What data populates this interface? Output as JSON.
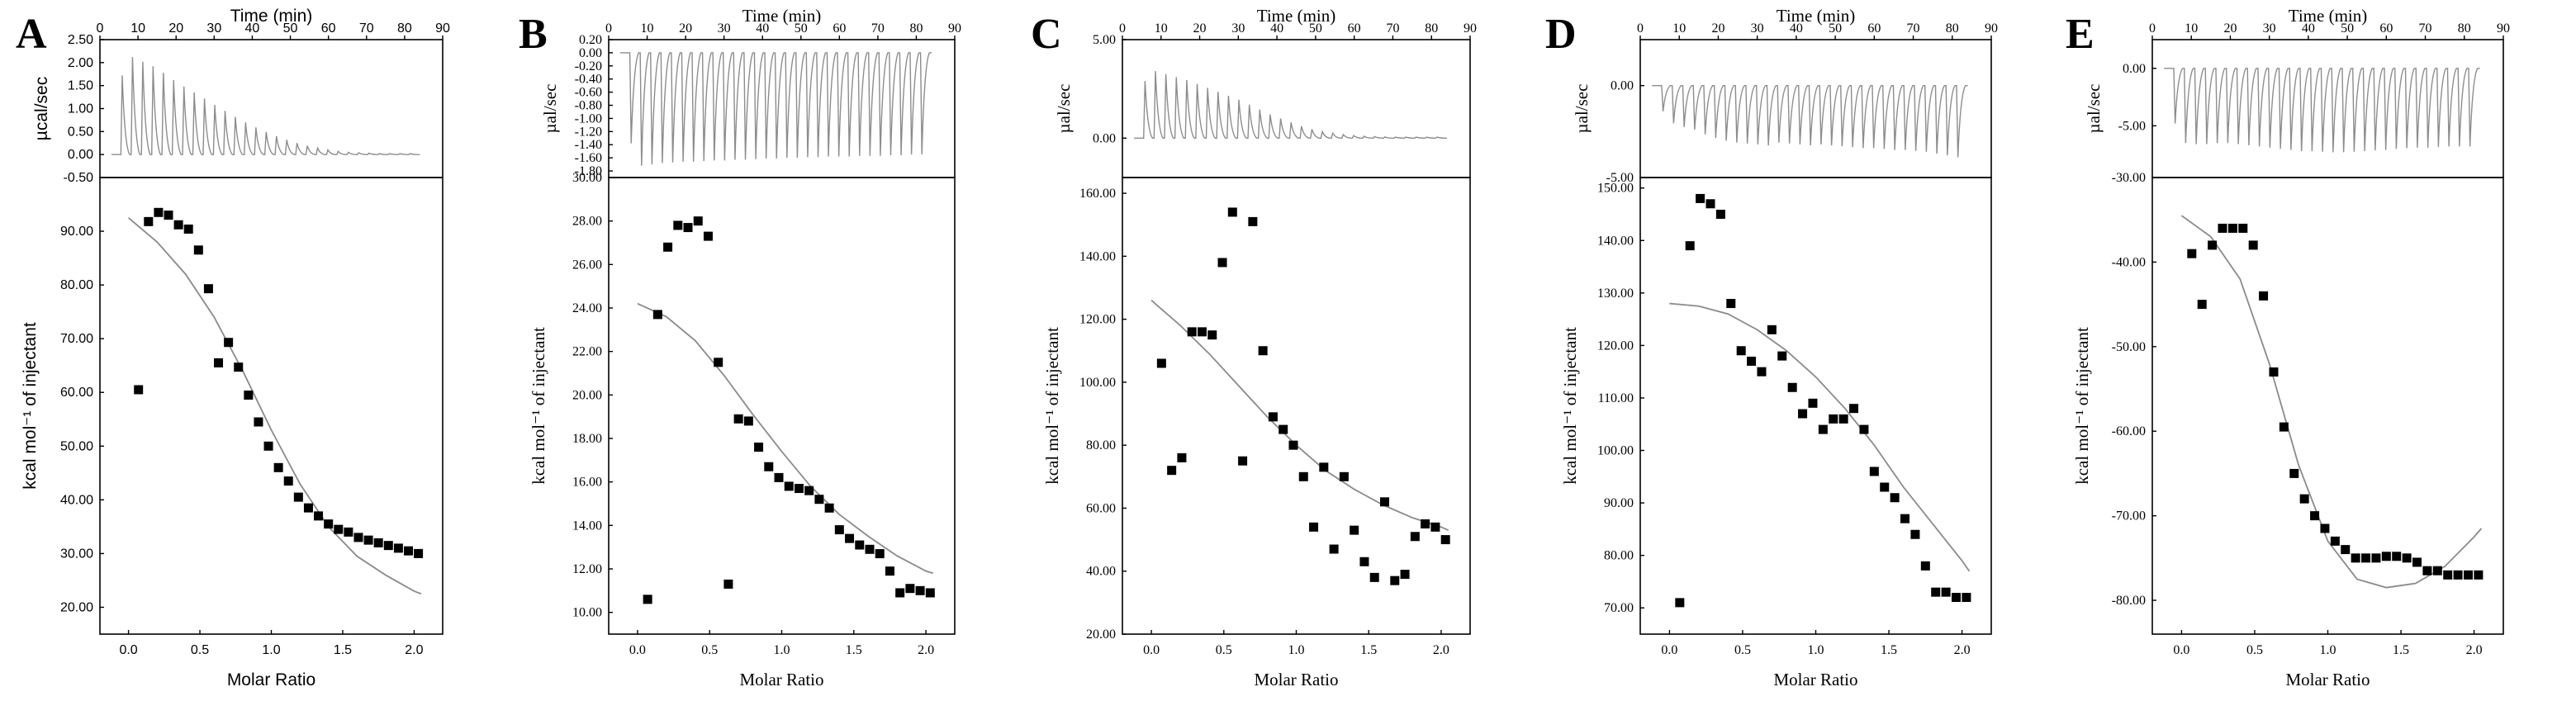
{
  "chart_data": [
    {
      "panel": "A",
      "type": "scatter",
      "top": {
        "title": "Time (min)",
        "xticks": [
          "0",
          "10",
          "20",
          "30",
          "40",
          "50",
          "60",
          "70",
          "80",
          "90"
        ],
        "xlim": [
          0,
          90
        ],
        "ylabel": "µcal/sec",
        "yticks": [
          "2.50",
          "2.00",
          "1.50",
          "1.00",
          "0.50",
          "0.00",
          "-0.50"
        ],
        "ylim": [
          -0.5,
          2.5
        ],
        "injection_times": [
          5.5,
          8.2,
          10.9,
          13.6,
          16.3,
          19,
          21.7,
          24.4,
          27.1,
          29.8,
          32.5,
          35.2,
          37.9,
          40.6,
          43.3,
          46,
          48.7,
          51.4,
          54.1,
          56.8,
          59.5,
          62.2,
          64.9,
          67.6,
          70.3,
          73,
          75.7,
          78.4,
          81.1
        ],
        "peak_values": [
          1.72,
          2.12,
          2.02,
          1.92,
          1.78,
          1.62,
          1.48,
          1.35,
          1.22,
          1.08,
          0.95,
          0.82,
          0.7,
          0.59,
          0.49,
          0.4,
          0.32,
          0.25,
          0.19,
          0.14,
          0.1,
          0.07,
          0.05,
          0.04,
          0.03,
          0.02,
          0.02,
          0.02,
          0.02
        ]
      },
      "bottom": {
        "xlabel": "Molar Ratio",
        "ylabel": "kcal mol⁻¹ of injectant",
        "xticks": [
          "0.0",
          "0.5",
          "1.0",
          "1.5",
          "2.0"
        ],
        "xlim": [
          -0.2,
          2.2
        ],
        "yticks": [
          "20.00",
          "30.00",
          "40.00",
          "50.00",
          "60.00",
          "70.00",
          "80.00",
          "90.00"
        ],
        "ylim": [
          15,
          100
        ],
        "x": [
          0.07,
          0.14,
          0.21,
          0.28,
          0.35,
          0.42,
          0.49,
          0.56,
          0.63,
          0.7,
          0.77,
          0.84,
          0.91,
          0.98,
          1.05,
          1.12,
          1.19,
          1.26,
          1.33,
          1.4,
          1.47,
          1.54,
          1.61,
          1.68,
          1.75,
          1.82,
          1.89,
          1.96,
          2.03
        ],
        "y": [
          60.5,
          91.8,
          93.5,
          93,
          91.2,
          90.4,
          86.5,
          79.3,
          65.5,
          69.3,
          64.7,
          59.5,
          54.5,
          50,
          46,
          43.5,
          40.5,
          38.5,
          37,
          35.5,
          34.5,
          34,
          33,
          32.5,
          32,
          31.5,
          31,
          30.5,
          30
        ],
        "fit_x": [
          0,
          0.2,
          0.4,
          0.6,
          0.8,
          1.0,
          1.2,
          1.4,
          1.6,
          1.8,
          2.0,
          2.05
        ],
        "fit_y": [
          92.5,
          88,
          82,
          74,
          64,
          53,
          43,
          35,
          29.5,
          26,
          23,
          22.5
        ]
      }
    },
    {
      "panel": "B",
      "type": "scatter",
      "top": {
        "title": "Time (min)",
        "xticks": [
          "0",
          "10",
          "20",
          "30",
          "40",
          "50",
          "60",
          "70",
          "80",
          "90"
        ],
        "xlim": [
          0,
          90
        ],
        "ylabel": "µal/sec",
        "yticks": [
          "0.20",
          "0.00",
          "-0.20",
          "-0.40",
          "-0.60",
          "-0.80",
          "-1.00",
          "-1.20",
          "-1.40",
          "-1.60",
          "-1.80"
        ],
        "ylim": [
          -1.9,
          0.2
        ],
        "injection_times": [
          5.5,
          8.2,
          10.9,
          13.6,
          16.3,
          19,
          21.7,
          24.4,
          27.1,
          29.8,
          32.5,
          35.2,
          37.9,
          40.6,
          43.3,
          46,
          48.7,
          51.4,
          54.1,
          56.8,
          59.5,
          62.2,
          64.9,
          67.6,
          70.3,
          73,
          75.7,
          78.4,
          81.1
        ],
        "peak_values": [
          -1.38,
          -1.72,
          -1.7,
          -1.68,
          -1.67,
          -1.66,
          -1.66,
          -1.65,
          -1.64,
          -1.64,
          -1.63,
          -1.63,
          -1.62,
          -1.61,
          -1.61,
          -1.6,
          -1.6,
          -1.59,
          -1.59,
          -1.58,
          -1.58,
          -1.58,
          -1.57,
          -1.57,
          -1.57,
          -1.56,
          -1.56,
          -1.55,
          -1.55
        ]
      },
      "bottom": {
        "xlabel": "Molar Ratio",
        "ylabel": "kcal mol⁻¹ of injectant",
        "xticks": [
          "0.0",
          "0.5",
          "1.0",
          "1.5",
          "2.0"
        ],
        "xlim": [
          -0.2,
          2.2
        ],
        "yticks": [
          "10.00",
          "12.00",
          "14.00",
          "16.00",
          "18.00",
          "20.00",
          "22.00",
          "24.00",
          "26.00",
          "28.00",
          "30.00"
        ],
        "ylim": [
          9,
          30
        ],
        "x": [
          0.07,
          0.14,
          0.21,
          0.28,
          0.35,
          0.42,
          0.49,
          0.56,
          0.63,
          0.7,
          0.77,
          0.84,
          0.91,
          0.98,
          1.05,
          1.12,
          1.19,
          1.26,
          1.33,
          1.4,
          1.47,
          1.54,
          1.61,
          1.68,
          1.75,
          1.82,
          1.89,
          1.96,
          2.03
        ],
        "y": [
          10.6,
          23.7,
          26.8,
          27.8,
          27.7,
          28.0,
          27.3,
          21.5,
          11.3,
          18.9,
          18.8,
          17.6,
          16.7,
          16.2,
          15.8,
          15.7,
          15.6,
          15.2,
          14.8,
          13.8,
          13.4,
          13.1,
          12.9,
          12.7,
          11.9,
          10.9,
          11.1,
          11.0,
          10.9
        ],
        "fit_x": [
          0,
          0.2,
          0.4,
          0.6,
          0.8,
          1.0,
          1.2,
          1.4,
          1.6,
          1.8,
          2.0,
          2.05
        ],
        "fit_y": [
          24.2,
          23.6,
          22.5,
          20.9,
          19.1,
          17.4,
          15.8,
          14.5,
          13.5,
          12.6,
          11.9,
          11.8
        ]
      }
    },
    {
      "panel": "C",
      "type": "scatter",
      "top": {
        "title": "Time (min)",
        "xticks": [
          "0",
          "10",
          "20",
          "30",
          "40",
          "50",
          "60",
          "70",
          "80",
          "90"
        ],
        "xlim": [
          0,
          90
        ],
        "ylabel": "µal/sec",
        "yticks": [
          "5.00",
          "0.00"
        ],
        "ylim": [
          -2,
          5
        ],
        "injection_times": [
          5.5,
          8.2,
          10.9,
          13.6,
          16.3,
          19,
          21.7,
          24.4,
          27.1,
          29.8,
          32.5,
          35.2,
          37.9,
          40.6,
          43.3,
          46,
          48.7,
          51.4,
          54.1,
          56.8,
          59.5,
          62.2,
          64.9,
          67.6,
          70.3,
          73,
          75.7,
          78.4,
          81.1
        ],
        "peak_values": [
          2.9,
          3.4,
          3.25,
          3.1,
          2.95,
          2.75,
          2.55,
          2.35,
          2.15,
          1.95,
          1.7,
          1.45,
          1.2,
          1.0,
          0.8,
          0.6,
          0.45,
          0.33,
          0.25,
          0.18,
          0.13,
          0.1,
          0.08,
          0.06,
          0.05,
          0.05,
          0.05,
          0.05,
          0.05
        ]
      },
      "bottom": {
        "xlabel": "Molar Ratio",
        "ylabel": "kcal mol⁻¹ of injectant",
        "xticks": [
          "0.0",
          "0.5",
          "1.0",
          "1.5",
          "2.0"
        ],
        "xlim": [
          -0.2,
          2.2
        ],
        "yticks": [
          "20.00",
          "40.00",
          "60.00",
          "80.00",
          "100.00",
          "120.00",
          "140.00",
          "160.00"
        ],
        "ylim": [
          20,
          165
        ],
        "x": [
          0.07,
          0.14,
          0.21,
          0.28,
          0.35,
          0.42,
          0.49,
          0.56,
          0.63,
          0.7,
          0.77,
          0.84,
          0.91,
          0.98,
          1.05,
          1.12,
          1.19,
          1.26,
          1.33,
          1.4,
          1.47,
          1.54,
          1.61,
          1.68,
          1.75,
          1.82,
          1.89,
          1.96,
          2.03
        ],
        "y": [
          106,
          72,
          76,
          116,
          116,
          115,
          138,
          154,
          75,
          151,
          110,
          89,
          85,
          80,
          70,
          54,
          73,
          47,
          70,
          53,
          43,
          38,
          62,
          37,
          39,
          51,
          55,
          54,
          50
        ],
        "fit_x": [
          0,
          0.2,
          0.4,
          0.6,
          0.8,
          1.0,
          1.2,
          1.4,
          1.6,
          1.8,
          2.0,
          2.05
        ],
        "fit_y": [
          126,
          118,
          109,
          99,
          89,
          80,
          72,
          66,
          61,
          57,
          54,
          53
        ]
      }
    },
    {
      "panel": "D",
      "type": "scatter",
      "top": {
        "title": "Time (min)",
        "xticks": [
          "0",
          "10",
          "20",
          "30",
          "40",
          "50",
          "60",
          "70",
          "80",
          "90"
        ],
        "xlim": [
          0,
          90
        ],
        "ylabel": "µal/sec",
        "yticks": [
          "0.00",
          "-5.00"
        ],
        "ylim": [
          -5,
          2.5
        ],
        "injection_times": [
          5.5,
          8.2,
          10.9,
          13.6,
          16.3,
          19,
          21.7,
          24.4,
          27.1,
          29.8,
          32.5,
          35.2,
          37.9,
          40.6,
          43.3,
          46,
          48.7,
          51.4,
          54.1,
          56.8,
          59.5,
          62.2,
          64.9,
          67.6,
          70.3,
          73,
          75.7,
          78.4,
          81.1
        ],
        "peak_values": [
          -1.4,
          -2.05,
          -2.25,
          -2.4,
          -2.65,
          -2.85,
          -3.0,
          -3.1,
          -3.15,
          -3.2,
          -3.25,
          -3.1,
          -3.15,
          -3.2,
          -3.25,
          -3.2,
          -3.25,
          -3.3,
          -3.35,
          -3.4,
          -3.4,
          -3.45,
          -3.5,
          -3.5,
          -3.55,
          -3.6,
          -3.7,
          -3.8,
          -3.9
        ]
      },
      "bottom": {
        "xlabel": "Molar Ratio",
        "ylabel": "kcal mol⁻¹ of injectant",
        "xticks": [
          "0.0",
          "0.5",
          "1.0",
          "1.5",
          "2.0"
        ],
        "xlim": [
          -0.2,
          2.2
        ],
        "yticks": [
          "70.00",
          "80.00",
          "90.00",
          "100.00",
          "110.00",
          "120.00",
          "130.00",
          "140.00",
          "150.00"
        ],
        "ylim": [
          65,
          152
        ],
        "x": [
          0.07,
          0.14,
          0.21,
          0.28,
          0.35,
          0.42,
          0.49,
          0.56,
          0.63,
          0.7,
          0.77,
          0.84,
          0.91,
          0.98,
          1.05,
          1.12,
          1.19,
          1.26,
          1.33,
          1.4,
          1.47,
          1.54,
          1.61,
          1.68,
          1.75,
          1.82,
          1.89,
          1.96,
          2.03
        ],
        "y": [
          71,
          139,
          148,
          147,
          145,
          128,
          119,
          117,
          115,
          123,
          118,
          112,
          107,
          109,
          104,
          106,
          106,
          108,
          104,
          96,
          93,
          91,
          87,
          84,
          78,
          73,
          73,
          72,
          72
        ],
        "fit_x": [
          0,
          0.2,
          0.4,
          0.6,
          0.8,
          1.0,
          1.2,
          1.4,
          1.6,
          1.8,
          2.0,
          2.05
        ],
        "fit_y": [
          128,
          127.5,
          126,
          123,
          119,
          114,
          108,
          101,
          93,
          86,
          79,
          77
        ]
      }
    },
    {
      "panel": "E",
      "type": "scatter",
      "top": {
        "title": "Time (min)",
        "xticks": [
          "0",
          "10",
          "20",
          "30",
          "40",
          "50",
          "60",
          "70",
          "80",
          "90"
        ],
        "xlim": [
          0,
          90
        ],
        "ylabel": "µal/sec",
        "yticks": [
          "0.00",
          "-5.00"
        ],
        "ylim": [
          -9.5,
          2.5
        ],
        "injection_times": [
          5.5,
          8.2,
          10.9,
          13.6,
          16.3,
          19,
          21.7,
          24.4,
          27.1,
          29.8,
          32.5,
          35.2,
          37.9,
          40.6,
          43.3,
          46,
          48.7,
          51.4,
          54.1,
          56.8,
          59.5,
          62.2,
          64.9,
          67.6,
          70.3,
          73,
          75.7,
          78.4,
          81.1
        ],
        "peak_values": [
          -4.8,
          -6.5,
          -6.6,
          -6.6,
          -6.5,
          -6.5,
          -6.6,
          -6.7,
          -6.8,
          -6.9,
          -7.0,
          -7.1,
          -7.2,
          -7.2,
          -7.25,
          -7.3,
          -7.3,
          -7.25,
          -7.2,
          -7.15,
          -7.1,
          -7.0,
          -6.95,
          -6.9,
          -6.9,
          -6.85,
          -6.8,
          -6.8,
          -6.8
        ]
      },
      "bottom": {
        "xlabel": "Molar Ratio",
        "ylabel": "kcal mol⁻¹ of injectant",
        "xticks": [
          "0.0",
          "0.5",
          "1.0",
          "1.5",
          "2.0"
        ],
        "xlim": [
          -0.2,
          2.2
        ],
        "yticks": [
          "-30.00",
          "-40.00",
          "-50.00",
          "-60.00",
          "-70.00",
          "-80.00"
        ],
        "ylim": [
          -84,
          -30
        ],
        "x": [
          0.07,
          0.14,
          0.21,
          0.28,
          0.35,
          0.42,
          0.49,
          0.56,
          0.63,
          0.7,
          0.77,
          0.84,
          0.91,
          0.98,
          1.05,
          1.12,
          1.19,
          1.26,
          1.33,
          1.4,
          1.47,
          1.54,
          1.61,
          1.68,
          1.75,
          1.82,
          1.89,
          1.96,
          2.03
        ],
        "y": [
          -39,
          -45,
          -38,
          -36,
          -36,
          -36,
          -38,
          -44,
          -53,
          -59.5,
          -65,
          -68,
          -70,
          -71.5,
          -73,
          -74,
          -75,
          -75,
          -75,
          -74.8,
          -74.8,
          -75,
          -75.5,
          -76.5,
          -76.5,
          -77,
          -77,
          -77,
          -77
        ],
        "fit_x": [
          0,
          0.2,
          0.4,
          0.6,
          0.8,
          1.0,
          1.2,
          1.4,
          1.6,
          1.8,
          2.0,
          2.05
        ],
        "fit_y": [
          -34.5,
          -37,
          -42,
          -52,
          -64,
          -73,
          -77.5,
          -78.5,
          -78,
          -76,
          -72.5,
          -71.5
        ]
      }
    }
  ]
}
